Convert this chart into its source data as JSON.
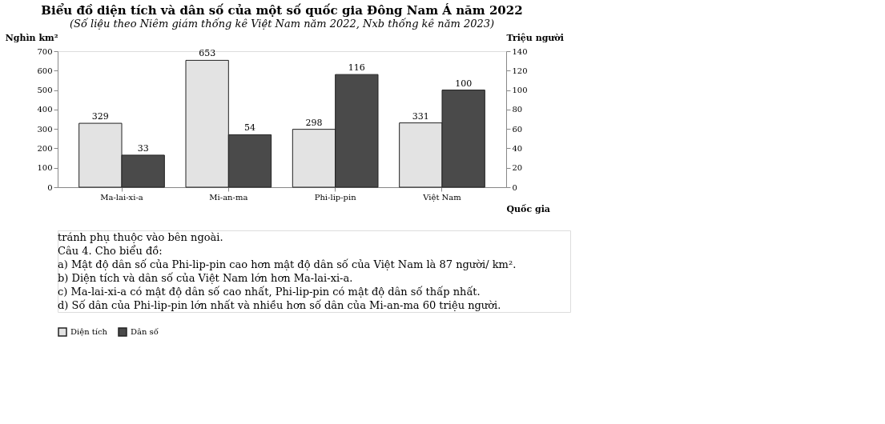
{
  "chart_data": {
    "type": "bar",
    "title": "Biểu đồ diện tích và dân số của một số quốc gia Đông Nam Á năm 2022",
    "subtitle": "(Số liệu theo Niêm giám thống kê Việt Nam năm 2022, Nxb thống kê năm 2023)",
    "xlabel": "Quốc gia",
    "ylabel": "Nghìn km²",
    "y2label": "Triệu người",
    "categories": [
      "Ma-lai-xi-a",
      "Mi-an-ma",
      "Phi-lip-pin",
      "Việt Nam"
    ],
    "series": [
      {
        "name": "Diện tích",
        "color": "#e3e3e3",
        "values": [
          329,
          653,
          298,
          331
        ]
      },
      {
        "name": "Dân số",
        "color": "#4a4a4a",
        "values": [
          33,
          54,
          116,
          100
        ],
        "axis": "y2"
      }
    ],
    "ylim": [
      0,
      700
    ],
    "yticks": [
      0,
      100,
      200,
      300,
      400,
      500,
      600,
      700
    ],
    "y2lim": [
      0,
      140
    ],
    "y2ticks": [
      0,
      20,
      40,
      60,
      80,
      100,
      120,
      140
    ],
    "data_labels": true,
    "legend": "bottom",
    "grid": false,
    "annotations": [
      "tránh phụ thuộc vào bên ngoài.",
      "Câu 4. Cho biểu đồ:",
      "a) Mật độ dân số của Phi-lip-pin cao hơn mật độ dân số của Việt Nam là 87 người/ km².",
      "b) Diện tích và dân số của Việt Nam lớn hơn Ma-lai-xi-a.",
      "c) Ma-lai-xi-a có mật độ dân số cao nhất, Phi-lip-pin có mật độ dân số thấp nhất.",
      "d) Số dân của Phi-lip-pin lớn nhất và nhiều hơn số dân của Mi-an-ma 60 triệu người."
    ]
  }
}
